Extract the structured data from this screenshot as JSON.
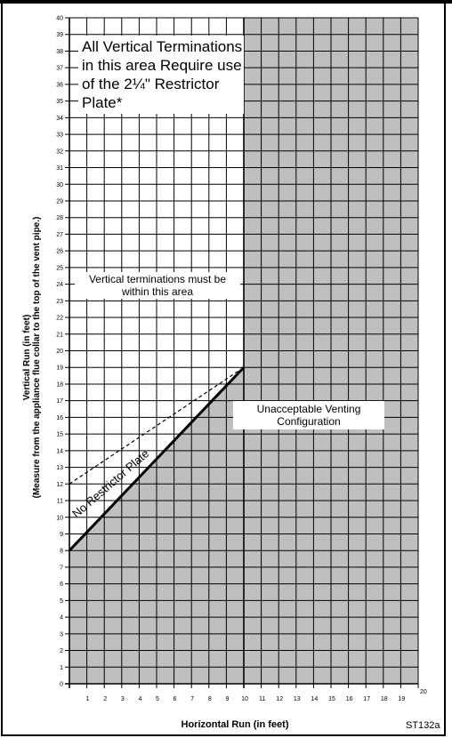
{
  "chart_data": {
    "type": "area",
    "xlabel": "Horizontal Run (in feet)",
    "ylabel_lines": [
      "Vertical Run (in feet)",
      "(Measure from the appliance flue collar to the top of the vent pipe.)"
    ],
    "xlim": [
      0,
      20
    ],
    "ylim": [
      0,
      40
    ],
    "x_ticks": [
      "1",
      "2",
      "3",
      "4",
      "5",
      "6",
      "7",
      "8",
      "9",
      "10",
      "11",
      "12",
      "13",
      "14",
      "15",
      "16",
      "17",
      "18",
      "19",
      "20"
    ],
    "y_ticks": [
      "0",
      "1",
      "2",
      "3",
      "4",
      "5",
      "6",
      "7",
      "8",
      "9",
      "10",
      "11",
      "12",
      "13",
      "14",
      "15",
      "16",
      "17",
      "18",
      "19",
      "20",
      "21",
      "22",
      "23",
      "24",
      "25",
      "26",
      "27",
      "28",
      "29",
      "30",
      "31",
      "32",
      "33",
      "34",
      "35",
      "36",
      "37",
      "38",
      "39",
      "40"
    ],
    "grid": true,
    "regions": [
      {
        "name": "Unacceptable Venting Configuration",
        "fill": "#bfbfbf",
        "polygon": [
          [
            0,
            0
          ],
          [
            0,
            8
          ],
          [
            10,
            19
          ],
          [
            10,
            40
          ],
          [
            20,
            40
          ],
          [
            20,
            0
          ]
        ]
      }
    ],
    "series": [
      {
        "name": "No Restrictor Plate",
        "style": "solid",
        "x": [
          0,
          10
        ],
        "y": [
          8,
          19
        ]
      },
      {
        "style": "dashed",
        "x": [
          0,
          10
        ],
        "y": [
          12,
          19
        ]
      }
    ]
  },
  "notes": {
    "restrictor": "All Vertical Terminations in this area Require use of the 2¼\" Restrictor Plate*",
    "terminations": "Vertical terminations must be within this area",
    "unacceptable": "Unacceptable Venting Configuration"
  },
  "figure_id": "ST132a",
  "colors": {
    "shade": "#bfbfbf",
    "grid": "#000000",
    "background": "#ffffff"
  }
}
